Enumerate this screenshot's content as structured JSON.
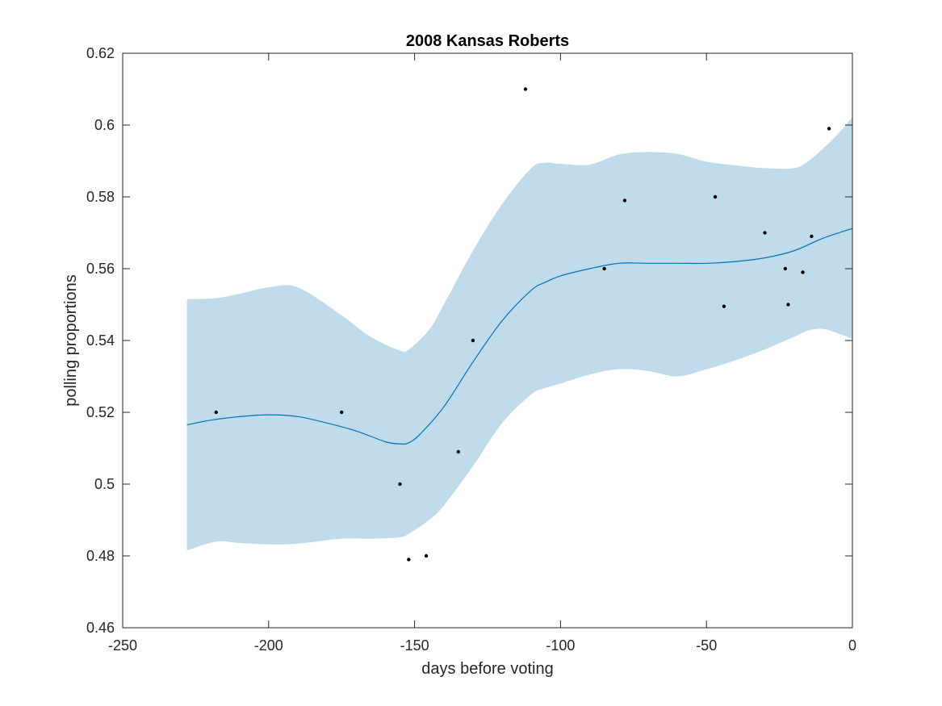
{
  "chart_data": {
    "type": "line",
    "title": "2008 Kansas Roberts",
    "xlabel": "days before voting",
    "ylabel": "polling proportions",
    "xlim": [
      -250,
      0
    ],
    "ylim": [
      0.46,
      0.62
    ],
    "xticks": [
      -250,
      -200,
      -150,
      -100,
      -50,
      0
    ],
    "xtick_labels": [
      "-250",
      "-200",
      "-150",
      "-100",
      "-50",
      "0"
    ],
    "yticks": [
      0.46,
      0.48,
      0.5,
      0.52,
      0.54,
      0.56,
      0.58,
      0.6,
      0.62
    ],
    "ytick_labels": [
      "0.46",
      "0.48",
      "0.5",
      "0.52",
      "0.54",
      "0.56",
      "0.58",
      "0.6",
      "0.62"
    ],
    "grid": false,
    "colors": {
      "band": "#c0dcea",
      "line": "#0072bd",
      "points": "#000000",
      "axis": "#262626"
    },
    "series": [
      {
        "type": "band",
        "x": [
          -228,
          -218,
          -210,
          -200,
          -190,
          -175,
          -165,
          -155,
          -152,
          -145,
          -140,
          -130,
          -120,
          -110,
          -105,
          -100,
          -90,
          -80,
          -70,
          -60,
          -50,
          -40,
          -30,
          -20,
          -15,
          -10,
          -5,
          0
        ],
        "lower": [
          0.4815,
          0.484,
          0.4836,
          0.4832,
          0.4834,
          0.4848,
          0.4848,
          0.4852,
          0.4862,
          0.49,
          0.494,
          0.505,
          0.517,
          0.525,
          0.5268,
          0.528,
          0.5305,
          0.532,
          0.5315,
          0.53,
          0.532,
          0.5345,
          0.5375,
          0.541,
          0.5428,
          0.5432,
          0.542,
          0.5405
        ],
        "upper": [
          0.5515,
          0.5518,
          0.553,
          0.5548,
          0.5548,
          0.547,
          0.541,
          0.5372,
          0.5375,
          0.543,
          0.55,
          0.565,
          0.578,
          0.588,
          0.5895,
          0.5892,
          0.589,
          0.5918,
          0.5925,
          0.592,
          0.5898,
          0.5888,
          0.588,
          0.588,
          0.59,
          0.5935,
          0.5975,
          0.6022
        ]
      },
      {
        "type": "line",
        "x": [
          -228,
          -220,
          -210,
          -200,
          -190,
          -180,
          -170,
          -160,
          -155,
          -152,
          -148,
          -140,
          -130,
          -120,
          -110,
          -105,
          -100,
          -90,
          -80,
          -70,
          -60,
          -50,
          -40,
          -30,
          -20,
          -10,
          0
        ],
        "y": [
          0.5165,
          0.5178,
          0.5188,
          0.5193,
          0.5188,
          0.517,
          0.5148,
          0.5118,
          0.5112,
          0.5115,
          0.514,
          0.5215,
          0.534,
          0.5455,
          0.554,
          0.5563,
          0.558,
          0.56,
          0.5615,
          0.5615,
          0.5615,
          0.5615,
          0.562,
          0.563,
          0.565,
          0.5685,
          0.5712
        ]
      },
      {
        "type": "scatter",
        "x": [
          -218,
          -175,
          -155,
          -152,
          -146,
          -135,
          -130,
          -112,
          -85,
          -78,
          -47,
          -44,
          -30,
          -23,
          -22,
          -17,
          -14,
          -8
        ],
        "y": [
          0.52,
          0.52,
          0.5,
          0.479,
          0.48,
          0.509,
          0.54,
          0.61,
          0.56,
          0.579,
          0.58,
          0.5495,
          0.57,
          0.56,
          0.55,
          0.559,
          0.569,
          0.599
        ]
      }
    ]
  }
}
